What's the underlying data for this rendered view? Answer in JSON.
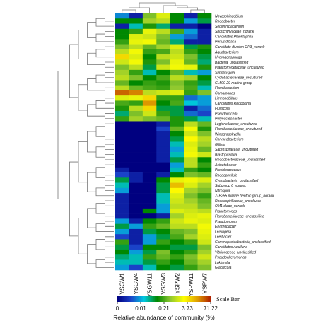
{
  "chart_data": {
    "type": "heatmap",
    "samples": [
      "YSGW1",
      "YSGW4",
      "YSGW11",
      "YSGW3",
      "YSPW2",
      "YSPW11",
      "YSPW7"
    ],
    "genera": [
      "Novosphingobium",
      "Rhodobacter",
      "Sediminibacterium",
      "Sporichthyaceae_norank",
      "Candidatus Planktophila",
      "Perlucidibaca",
      "Candidate division OP3_norank",
      "Aquabacterium",
      "Hydrogenophaga",
      "Bacteria_unclassified",
      "Planctomycetaceae_uncultured",
      "Simplicispira",
      "Cyclobacteriaceae_uncultured",
      "CL500-29 marine group",
      "Flavobacterium",
      "Comamonas",
      "Limnohabitans",
      "Candidatus Rhodoluna",
      "Fluviicola",
      "Pseudarcicella",
      "Polynucleobacter",
      "Legionellaceae_uncultured",
      "Flavobacteriaceae_uncultured",
      "Winogradskyella",
      "Chryseobacterium",
      "Gillisia",
      "Saprospiraceae_uncultured",
      "Blastopirellula",
      "Rhodobacteraceae_unclassified",
      "Acinetobacter",
      "Prochlorococcus",
      "Rhodopirellula",
      "Cyanobacteria_unclassified",
      "Subgroup 6_norank",
      "Nitrospira",
      "JTB255 marine benthic group_norank",
      "Rhodospirillaceae_uncultured",
      "OM1 clade_norank",
      "Planctomyces",
      "Flavobacteriaceae_unclassified",
      "Pseudomonas",
      "Erythrobacter",
      "Leisingera",
      "Leeibacter",
      "Gammaproteobacteria_unclassified",
      "Candidatus Aquiluna",
      "Vibrionaceae_unclassified",
      "Pseudoalteromonas",
      "Lokiarella",
      "Glaciecola"
    ],
    "values": [
      [
        0.04,
        0.01,
        1.0,
        3.0,
        0.3,
        0.01,
        0.3
      ],
      [
        0.3,
        0.3,
        1.5,
        2.0,
        0.3,
        0.05,
        0.2
      ],
      [
        0.01,
        0.1,
        0.4,
        0.15,
        0.01,
        0.01,
        0.005
      ],
      [
        0.3,
        0.5,
        3.5,
        2.0,
        0.6,
        0.05,
        0.01
      ],
      [
        0.3,
        3.0,
        2.5,
        1.0,
        0.05,
        0.03,
        0.01
      ],
      [
        0.5,
        3.5,
        4.0,
        0.8,
        0.15,
        0.01,
        0.01
      ],
      [
        1.0,
        2.0,
        0.8,
        1.5,
        3.0,
        0.2,
        0.4
      ],
      [
        2.0,
        4.0,
        0.5,
        0.6,
        2.0,
        0.5,
        0.3
      ],
      [
        8.0,
        3.0,
        0.3,
        2.0,
        2.5,
        1.0,
        0.2
      ],
      [
        2.5,
        4.0,
        0.4,
        1.0,
        3.5,
        0.8,
        0.15
      ],
      [
        1.0,
        2.0,
        0.2,
        2.5,
        4.0,
        3.5,
        0.4
      ],
      [
        1.5,
        0.5,
        0.1,
        0.3,
        0.8,
        0.1,
        0.05
      ],
      [
        2.0,
        1.0,
        0.3,
        0.6,
        2.0,
        1.5,
        0.3
      ],
      [
        0.8,
        0.3,
        0.5,
        0.4,
        1.0,
        0.5,
        0.2
      ],
      [
        2.0,
        0.8,
        0.6,
        0.5,
        1.2,
        0.6,
        0.1
      ],
      [
        35.0,
        25.0,
        2.0,
        2.5,
        3.0,
        0.5,
        1.0
      ],
      [
        3.0,
        3.5,
        8.0,
        0.5,
        0.5,
        0.03,
        0.05
      ],
      [
        0.6,
        0.5,
        20.0,
        0.3,
        0.6,
        0.08,
        0.05
      ],
      [
        0.4,
        2.0,
        8.0,
        0.2,
        0.2,
        0.01,
        0.03
      ],
      [
        0.15,
        1.0,
        2.5,
        0.5,
        0.2,
        0.03,
        0.02
      ],
      [
        0.5,
        1.5,
        1.0,
        0.8,
        0.4,
        0.2,
        0.1
      ],
      [
        0.005,
        0.005,
        0.005,
        0.01,
        0.4,
        2.0,
        0.8
      ],
      [
        0.005,
        0.005,
        0.005,
        0.02,
        0.8,
        4.0,
        0.4
      ],
      [
        0.005,
        0.005,
        0.005,
        0.01,
        0.3,
        2.5,
        1.0
      ],
      [
        0.005,
        0.005,
        0.005,
        0.01,
        0.2,
        5.0,
        2.0
      ],
      [
        0.005,
        0.005,
        0.005,
        0.01,
        0.1,
        3.0,
        1.5
      ],
      [
        0.005,
        0.005,
        0.005,
        0.01,
        0.05,
        3.5,
        0.8
      ],
      [
        0.005,
        0.005,
        0.005,
        0.01,
        0.1,
        4.0,
        2.5
      ],
      [
        0.005,
        0.005,
        0.005,
        0.01,
        0.2,
        2.0,
        0.3
      ],
      [
        0.005,
        0.005,
        0.005,
        0.005,
        0.05,
        2.0,
        0.5
      ],
      [
        0.01,
        0.005,
        0.005,
        0.005,
        0.1,
        0.5,
        0.3
      ],
      [
        0.02,
        0.01,
        0.005,
        0.01,
        0.3,
        1.0,
        0.8
      ],
      [
        0.2,
        0.01,
        0.005,
        0.3,
        3.5,
        4.0,
        3.0
      ],
      [
        0.1,
        0.005,
        0.005,
        0.2,
        12.0,
        3.0,
        1.5
      ],
      [
        0.05,
        0.005,
        0.005,
        0.2,
        5.0,
        1.5,
        1.0
      ],
      [
        0.01,
        0.005,
        0.005,
        0.1,
        3.0,
        1.0,
        0.5
      ],
      [
        0.01,
        0.005,
        0.005,
        0.1,
        2.5,
        1.5,
        0.8
      ],
      [
        0.01,
        0.005,
        0.005,
        0.05,
        2.0,
        2.0,
        1.0
      ],
      [
        0.01,
        0.005,
        0.3,
        0.05,
        3.0,
        2.5,
        2.0
      ],
      [
        0.01,
        0.005,
        0.005,
        0.01,
        1.5,
        3.0,
        3.5
      ],
      [
        0.05,
        0.01,
        0.3,
        0.5,
        2.5,
        3.5,
        3.0
      ],
      [
        0.2,
        0.05,
        0.5,
        0.8,
        2.0,
        2.0,
        4.0
      ],
      [
        0.05,
        0.01,
        0.2,
        0.3,
        0.8,
        1.0,
        3.5
      ],
      [
        0.02,
        0.01,
        0.05,
        0.2,
        0.6,
        1.5,
        3.0
      ],
      [
        0.5,
        0.01,
        0.05,
        0.5,
        0.3,
        0.5,
        2.5
      ],
      [
        0.2,
        0.02,
        0.3,
        0.3,
        0.2,
        0.2,
        1.0
      ],
      [
        0.3,
        0.05,
        0.2,
        1.0,
        0.3,
        0.5,
        1.5
      ],
      [
        0.15,
        0.1,
        0.5,
        0.8,
        0.5,
        1.0,
        2.5
      ],
      [
        0.1,
        0.1,
        0.2,
        0.5,
        0.3,
        0.8,
        1.5
      ],
      [
        0.05,
        0.02,
        0.1,
        0.3,
        0.2,
        0.5,
        1.0
      ]
    ],
    "color_scale": {
      "tick_labels": [
        "0",
        "0.01",
        "0.21",
        "3.73",
        "71.22"
      ],
      "colors": [
        "#000080",
        "#1a40c8",
        "#00c8e0",
        "#008800",
        "#90c830",
        "#ffff00",
        "#e0a000",
        "#b02000"
      ],
      "label": "Relative abundance of community (%)",
      "side_label": "Scale Bar"
    }
  }
}
